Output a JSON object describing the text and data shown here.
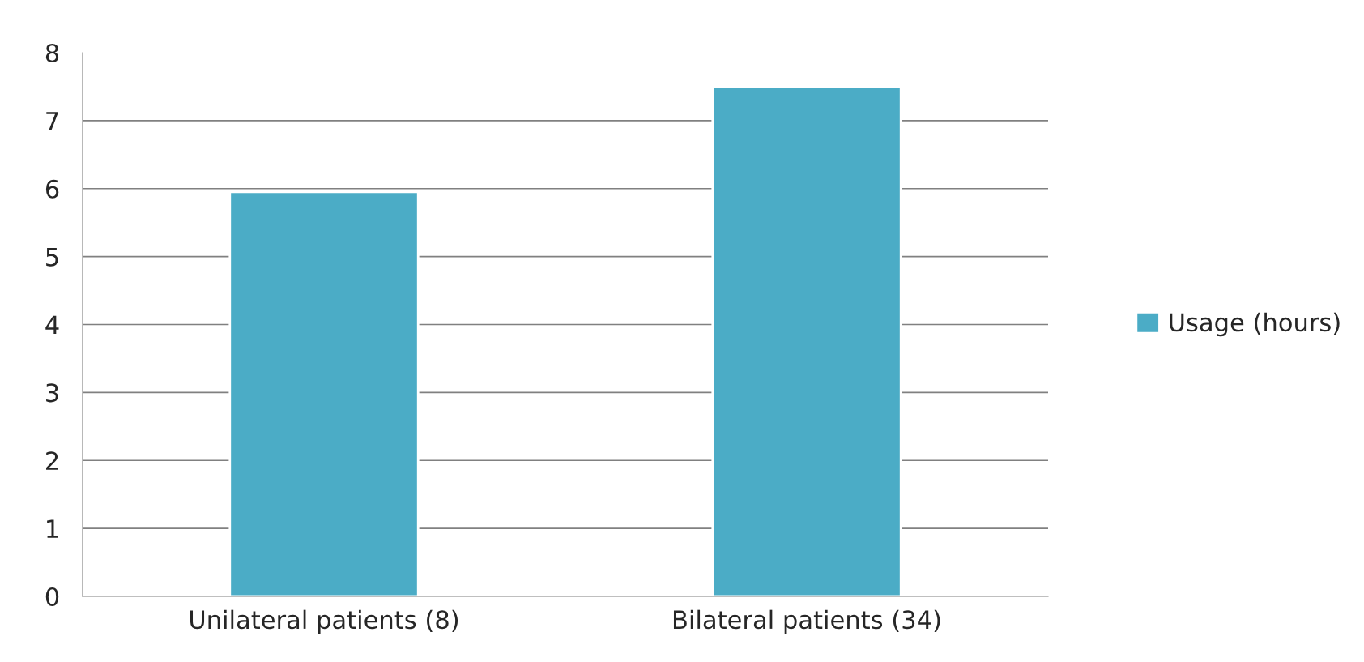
{
  "chart_data": {
    "type": "bar",
    "categories": [
      "Unilateral patients (8)",
      "Bilateral patients (34)"
    ],
    "series": [
      {
        "name": "Usage (hours)",
        "color": "#4bacc6",
        "values": [
          5.95,
          7.5
        ]
      }
    ],
    "ylim": [
      0,
      8
    ],
    "yticks": [
      0,
      1,
      2,
      3,
      4,
      5,
      6,
      7,
      8
    ],
    "grid": "y",
    "legend": "right"
  }
}
